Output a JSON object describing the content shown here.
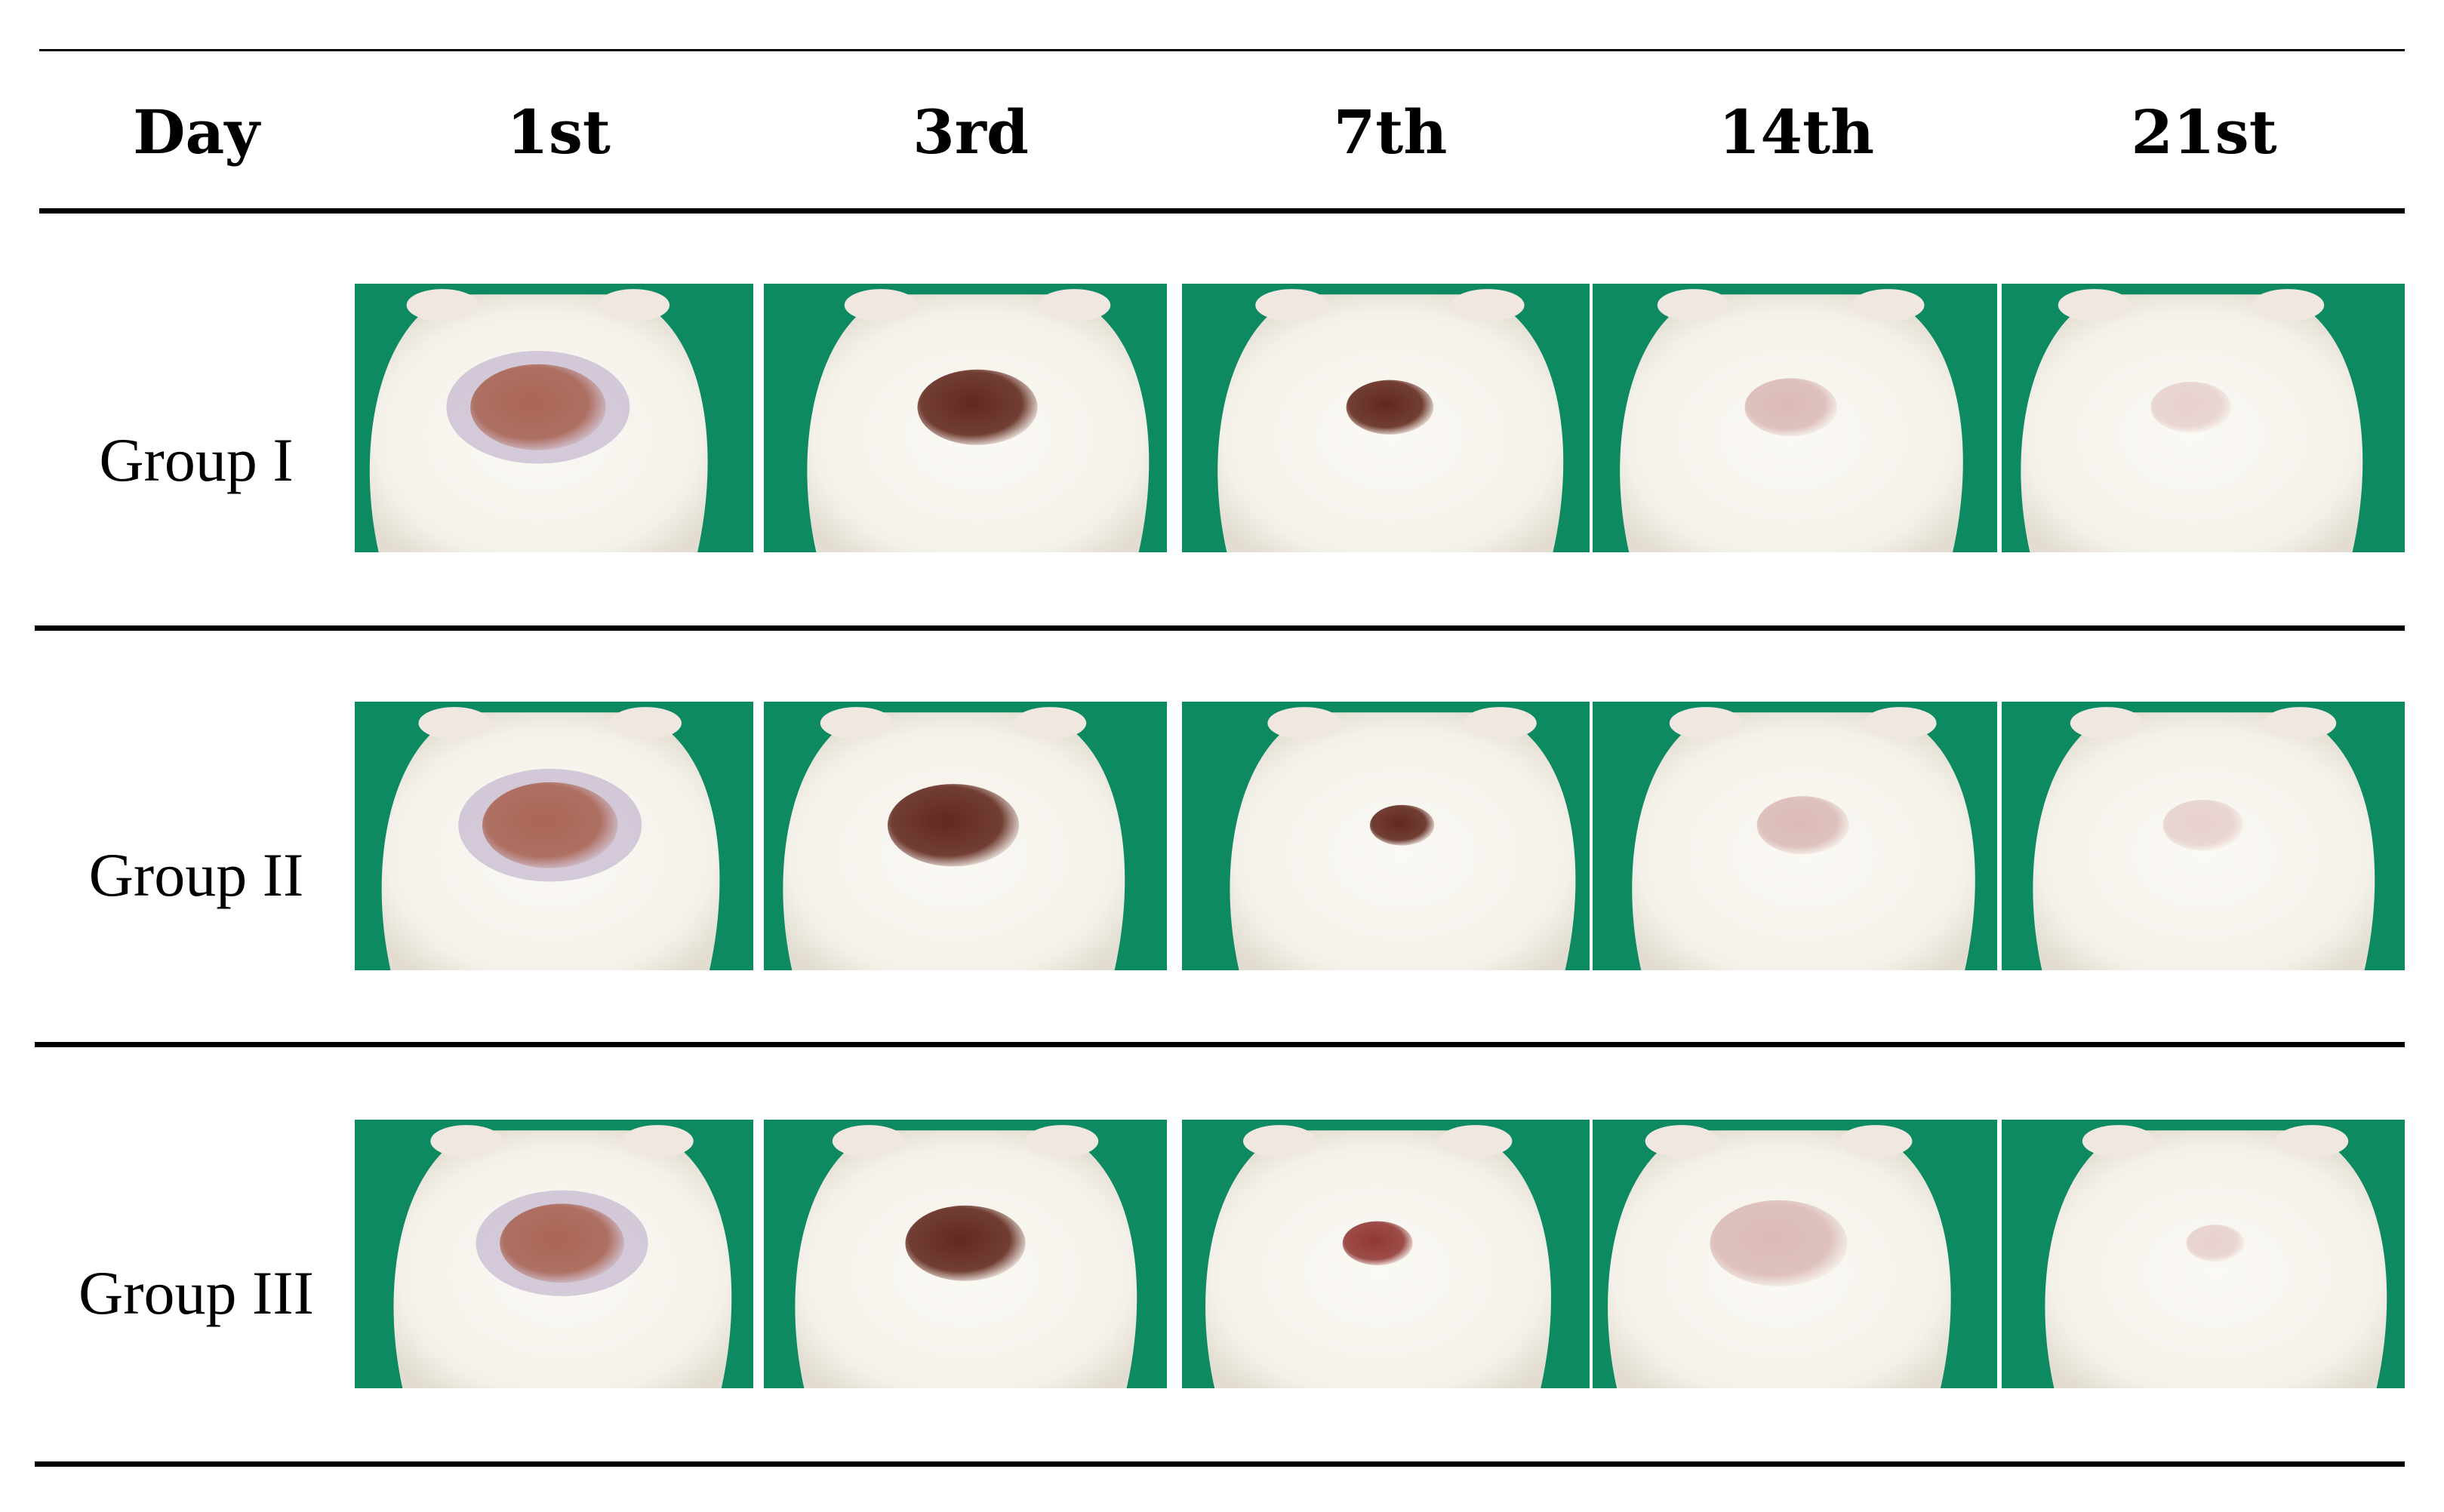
{
  "header": {
    "day_label": "Day",
    "days": [
      "1st",
      "3rd",
      "7th",
      "14th",
      "21st"
    ]
  },
  "groups": [
    {
      "label": "Group I",
      "photos": [
        {
          "wound": "moist-pink",
          "wound_size": 1.0
        },
        {
          "wound": "dark-scab",
          "wound_size": 0.85
        },
        {
          "wound": "dark-scab",
          "wound_size": 0.55
        },
        {
          "wound": "pink-scar",
          "wound_size": 0.6
        },
        {
          "wound": "faint-scar",
          "wound_size": 0.5
        }
      ]
    },
    {
      "label": "Group II",
      "photos": [
        {
          "wound": "moist-pink",
          "wound_size": 1.0
        },
        {
          "wound": "dark-scab",
          "wound_size": 0.95
        },
        {
          "wound": "dark-scab",
          "wound_size": 0.35
        },
        {
          "wound": "pink-scar",
          "wound_size": 0.6
        },
        {
          "wound": "faint-scar",
          "wound_size": 0.5
        }
      ]
    },
    {
      "label": "Group III",
      "photos": [
        {
          "wound": "moist-pink",
          "wound_size": 0.9
        },
        {
          "wound": "dark-scab",
          "wound_size": 0.85
        },
        {
          "wound": "red-spot",
          "wound_size": 0.4
        },
        {
          "wound": "pink-scar",
          "wound_size": 1.0
        },
        {
          "wound": "faint-scar",
          "wound_size": 0.3
        }
      ]
    }
  ],
  "colors": {
    "background_cloth": "#0e8a63",
    "fur": "#f4f1ea",
    "moist-pink": "#a8604f",
    "dark-scab": "#5a1e12",
    "red-spot": "#8c2e2a",
    "pink-scar": "#d9b7b3",
    "faint-scar": "#e6cfcc"
  }
}
